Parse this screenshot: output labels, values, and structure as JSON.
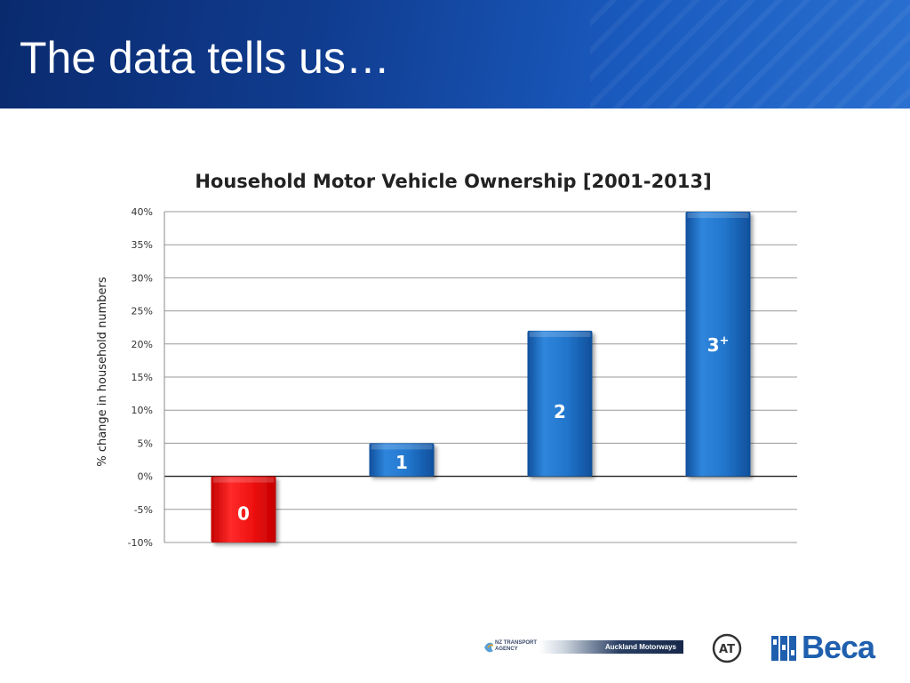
{
  "slide": {
    "title": "The data tells us…"
  },
  "chart_data": {
    "type": "bar",
    "title": "Household Motor Vehicle Ownership [2001-2013]",
    "ylabel": "% change in household numbers",
    "ylim": [
      -10,
      40
    ],
    "yticks": [
      "-10%",
      "-5%",
      "0%",
      "5%",
      "10%",
      "15%",
      "20%",
      "25%",
      "30%",
      "35%",
      "40%"
    ],
    "categories": [
      "0",
      "1",
      "2",
      "3+"
    ],
    "values": [
      -10,
      5,
      22,
      40
    ],
    "bar_labels": [
      {
        "main": "0",
        "sup": ""
      },
      {
        "main": "1",
        "sup": ""
      },
      {
        "main": "2",
        "sup": ""
      },
      {
        "main": "3",
        "sup": "+"
      }
    ],
    "colors": [
      "#ee1111",
      "#1f73c9",
      "#1f73c9",
      "#1f73c9"
    ],
    "grid": true
  },
  "footer": {
    "nzta_logo_text": "NZ TRANSPORT AGENCY",
    "nzta_bar_label": "Auckland Motorways",
    "at_logo_text": "AT",
    "beca_wordmark": "Beca"
  }
}
